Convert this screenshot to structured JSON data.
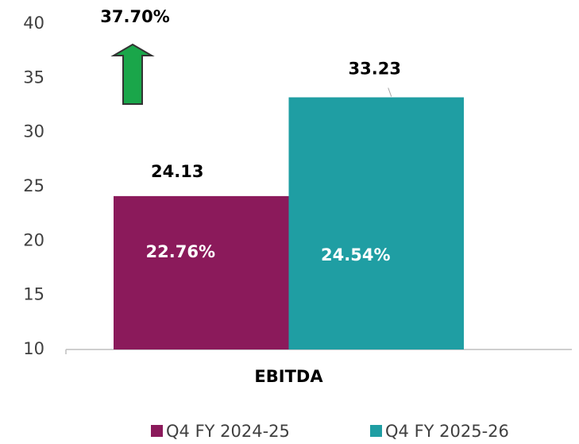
{
  "chart_data": {
    "type": "bar",
    "categories": [
      "EBITDA"
    ],
    "series": [
      {
        "name": "Q4 FY 2024-25",
        "color": "#8b1a5b",
        "values": [
          24.13
        ]
      },
      {
        "name": "Q4 FY 2025-26",
        "color": "#1f9ea3",
        "values": [
          33.23
        ]
      }
    ],
    "ylim": [
      10,
      40
    ],
    "yticks": [
      10,
      15,
      20,
      25,
      30,
      35,
      40
    ],
    "annotations": [
      "37.70%",
      "22.76%",
      "24.54%"
    ],
    "arrow_color": "#1aa64a",
    "legend": "bottom"
  }
}
